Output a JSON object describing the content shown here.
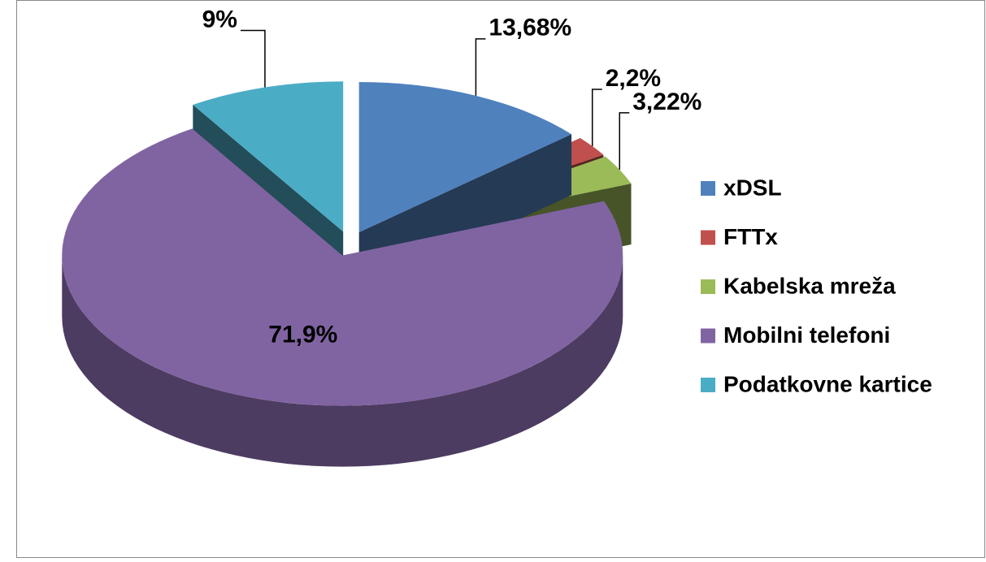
{
  "chart_data": {
    "type": "pie3d",
    "categories": [
      "xDSL",
      "FTTx",
      "Kabelska mreža",
      "Mobilni telefoni",
      "Podatkovne kartice"
    ],
    "values": [
      13.68,
      2.2,
      3.22,
      71.9,
      9
    ],
    "value_labels": [
      "13,68%",
      "2,2%",
      "3,22%",
      "71,9%",
      "9%"
    ],
    "colors": [
      "#4f81bd",
      "#c0504d",
      "#9bbb59",
      "#8064a2",
      "#4bacc6"
    ],
    "legend": "right"
  }
}
